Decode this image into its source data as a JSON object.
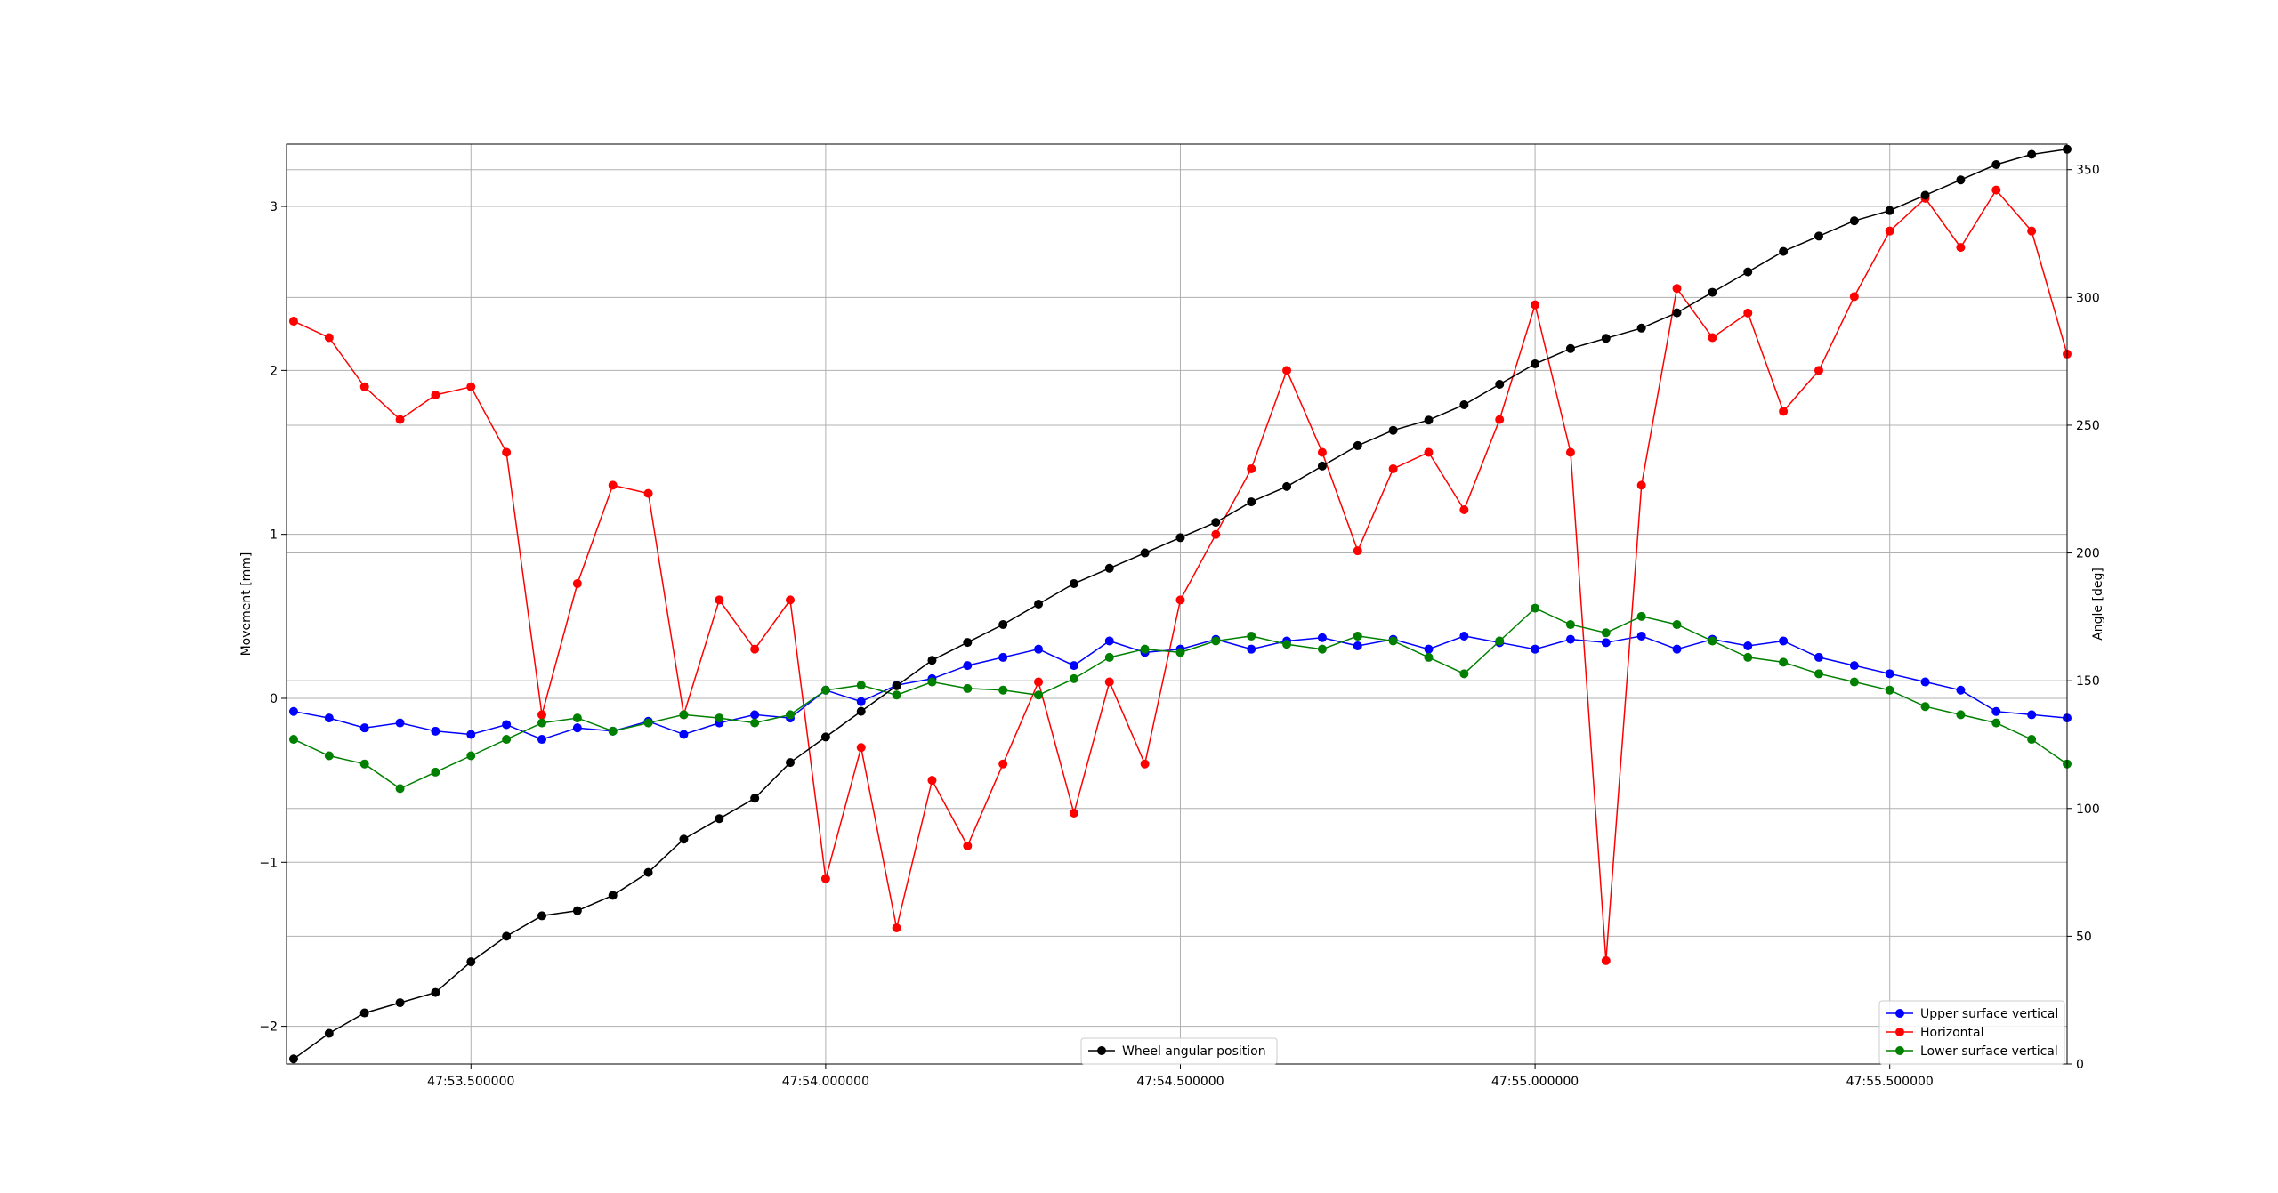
{
  "chart_data": {
    "type": "line",
    "title": "",
    "xlabel": "",
    "ylabel": "Movement [mm]",
    "y2label": "Angle [deg]",
    "xlim": [
      47.24,
      49.75
    ],
    "ylim": [
      -2.23,
      3.38
    ],
    "y2lim": [
      0,
      360
    ],
    "grid": true,
    "x_ticks": [
      {
        "value": 47.5,
        "label": "47:53.500000"
      },
      {
        "value": 48.0,
        "label": "47:54.000000"
      },
      {
        "value": 48.5,
        "label": "47:54.500000"
      },
      {
        "value": 49.0,
        "label": "47:55.000000"
      },
      {
        "value": 49.5,
        "label": "47:55.500000"
      }
    ],
    "y_ticks": [
      {
        "value": -2,
        "label": "−2"
      },
      {
        "value": -1,
        "label": "−1"
      },
      {
        "value": 0,
        "label": "0"
      },
      {
        "value": 1,
        "label": "1"
      },
      {
        "value": 2,
        "label": "2"
      },
      {
        "value": 3,
        "label": "3"
      }
    ],
    "y2_ticks": [
      {
        "value": 0,
        "label": "0"
      },
      {
        "value": 50,
        "label": "50"
      },
      {
        "value": 100,
        "label": "100"
      },
      {
        "value": 150,
        "label": "150"
      },
      {
        "value": 200,
        "label": "200"
      },
      {
        "value": 250,
        "label": "250"
      },
      {
        "value": 300,
        "label": "300"
      },
      {
        "value": 350,
        "label": "350"
      }
    ],
    "series": [
      {
        "name": "Upper surface vertical",
        "axis": "left",
        "color": "#0000ff",
        "x": [
          47.25,
          47.3,
          47.35,
          47.4,
          47.45,
          47.5,
          47.55,
          47.6,
          47.65,
          47.7,
          47.75,
          47.8,
          47.85,
          47.9,
          47.95,
          48.0,
          48.05,
          48.1,
          48.15,
          48.2,
          48.25,
          48.3,
          48.35,
          48.4,
          48.45,
          48.5,
          48.55,
          48.6,
          48.65,
          48.7,
          48.75,
          48.8,
          48.85,
          48.9,
          48.95,
          49.0,
          49.05,
          49.1,
          49.15,
          49.2,
          49.25,
          49.3,
          49.35,
          49.4,
          49.45,
          49.5,
          49.55,
          49.6,
          49.65,
          49.7,
          49.75
        ],
        "values": [
          -0.08,
          -0.12,
          -0.18,
          -0.15,
          -0.2,
          -0.22,
          -0.16,
          -0.25,
          -0.18,
          -0.2,
          -0.14,
          -0.22,
          -0.15,
          -0.1,
          -0.12,
          0.05,
          -0.02,
          0.08,
          0.12,
          0.2,
          0.25,
          0.3,
          0.2,
          0.35,
          0.28,
          0.3,
          0.36,
          0.3,
          0.35,
          0.37,
          0.32,
          0.36,
          0.3,
          0.38,
          0.34,
          0.3,
          0.36,
          0.34,
          0.38,
          0.3,
          0.36,
          0.32,
          0.35,
          0.25,
          0.2,
          0.15,
          0.1,
          0.05,
          -0.08,
          -0.1,
          -0.12
        ]
      },
      {
        "name": "Horizontal",
        "axis": "left",
        "color": "#ff0000",
        "x": [
          47.25,
          47.3,
          47.35,
          47.4,
          47.45,
          47.5,
          47.55,
          47.6,
          47.65,
          47.7,
          47.75,
          47.8,
          47.85,
          47.9,
          47.95,
          48.0,
          48.05,
          48.1,
          48.15,
          48.2,
          48.25,
          48.3,
          48.35,
          48.4,
          48.45,
          48.5,
          48.55,
          48.6,
          48.65,
          48.7,
          48.75,
          48.8,
          48.85,
          48.9,
          48.95,
          49.0,
          49.05,
          49.1,
          49.15,
          49.2,
          49.25,
          49.3,
          49.35,
          49.4,
          49.45,
          49.5,
          49.55,
          49.6,
          49.65,
          49.7,
          49.75
        ],
        "values": [
          2.3,
          2.2,
          1.9,
          1.7,
          1.85,
          1.9,
          1.5,
          -0.1,
          0.7,
          1.3,
          1.25,
          -0.1,
          0.6,
          0.3,
          0.6,
          -1.1,
          -0.3,
          -1.4,
          -0.5,
          -0.9,
          -0.4,
          0.1,
          -0.7,
          0.1,
          -0.4,
          0.6,
          1.0,
          1.4,
          2.0,
          1.5,
          0.9,
          1.4,
          1.5,
          1.15,
          1.7,
          2.4,
          1.5,
          -1.6,
          1.3,
          2.5,
          2.2,
          2.35,
          1.75,
          2.0,
          2.45,
          2.85,
          3.05,
          2.75,
          3.1,
          2.85,
          2.1
        ]
      },
      {
        "name": "Lower surface vertical",
        "axis": "left",
        "color": "#008000",
        "x": [
          47.25,
          47.3,
          47.35,
          47.4,
          47.45,
          47.5,
          47.55,
          47.6,
          47.65,
          47.7,
          47.75,
          47.8,
          47.85,
          47.9,
          47.95,
          48.0,
          48.05,
          48.1,
          48.15,
          48.2,
          48.25,
          48.3,
          48.35,
          48.4,
          48.45,
          48.5,
          48.55,
          48.6,
          48.65,
          48.7,
          48.75,
          48.8,
          48.85,
          48.9,
          48.95,
          49.0,
          49.05,
          49.1,
          49.15,
          49.2,
          49.25,
          49.3,
          49.35,
          49.4,
          49.45,
          49.5,
          49.55,
          49.6,
          49.65,
          49.7,
          49.75
        ],
        "values": [
          -0.25,
          -0.35,
          -0.4,
          -0.55,
          -0.45,
          -0.35,
          -0.25,
          -0.15,
          -0.12,
          -0.2,
          -0.15,
          -0.1,
          -0.12,
          -0.15,
          -0.1,
          0.05,
          0.08,
          0.02,
          0.1,
          0.06,
          0.05,
          0.02,
          0.12,
          0.25,
          0.3,
          0.28,
          0.35,
          0.38,
          0.33,
          0.3,
          0.38,
          0.35,
          0.25,
          0.15,
          0.35,
          0.55,
          0.45,
          0.4,
          0.5,
          0.45,
          0.35,
          0.25,
          0.22,
          0.15,
          0.1,
          0.05,
          -0.05,
          -0.1,
          -0.15,
          -0.25,
          -0.4
        ]
      },
      {
        "name": "Wheel angular position",
        "axis": "right",
        "color": "#000000",
        "x": [
          47.25,
          47.3,
          47.35,
          47.4,
          47.45,
          47.5,
          47.55,
          47.6,
          47.65,
          47.7,
          47.75,
          47.8,
          47.85,
          47.9,
          47.95,
          48.0,
          48.05,
          48.1,
          48.15,
          48.2,
          48.25,
          48.3,
          48.35,
          48.4,
          48.45,
          48.5,
          48.55,
          48.6,
          48.65,
          48.7,
          48.75,
          48.8,
          48.85,
          48.9,
          48.95,
          49.0,
          49.05,
          49.1,
          49.15,
          49.2,
          49.25,
          49.3,
          49.35,
          49.4,
          49.45,
          49.5,
          49.55,
          49.6,
          49.65,
          49.7,
          49.75
        ],
        "values": [
          2,
          12,
          20,
          24,
          28,
          40,
          50,
          58,
          60,
          66,
          75,
          88,
          96,
          104,
          118,
          128,
          138,
          148,
          158,
          165,
          172,
          180,
          188,
          194,
          200,
          206,
          212,
          220,
          226,
          234,
          242,
          248,
          252,
          258,
          266,
          274,
          280,
          284,
          288,
          294,
          302,
          310,
          318,
          324,
          330,
          334,
          340,
          346,
          352,
          356,
          358
        ]
      }
    ],
    "legends": [
      {
        "placement": "lower-center",
        "entries": [
          "Wheel angular position"
        ]
      },
      {
        "placement": "lower-right",
        "entries": [
          "Upper surface vertical",
          "Horizontal",
          "Lower surface vertical"
        ]
      }
    ]
  }
}
